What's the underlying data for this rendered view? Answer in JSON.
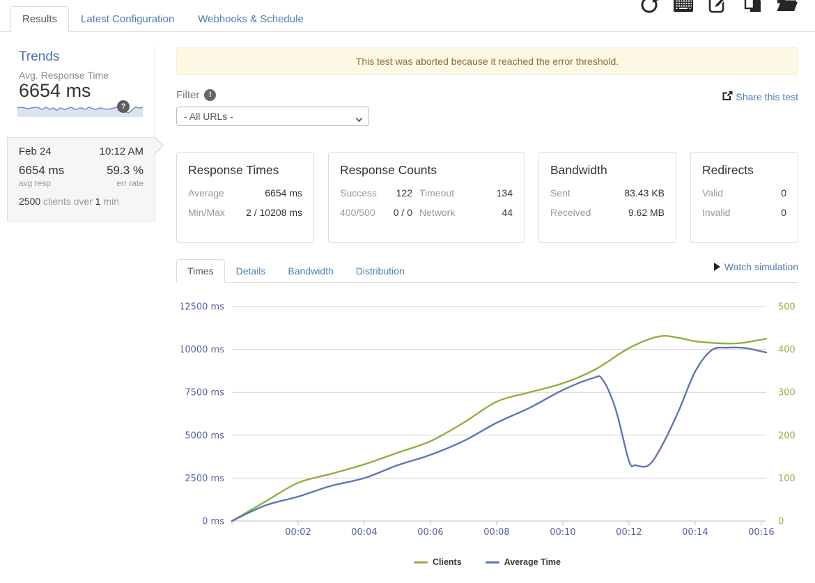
{
  "nav": {
    "tabs": [
      {
        "label": "Results",
        "active": true
      },
      {
        "label": "Latest Configuration",
        "active": false
      },
      {
        "label": "Webhooks & Schedule",
        "active": false
      }
    ],
    "toolbar_icons": [
      "refresh",
      "keyboard",
      "edit",
      "copy",
      "folder"
    ],
    "icon_color": "#262626"
  },
  "sidebar": {
    "title": "Trends",
    "metric_label": "Avg. Response Time",
    "metric_value": "6654 ms",
    "help_badge": "?",
    "sparkline": {
      "line_color": "#6d95c9",
      "fill_color": "#dde4f0",
      "values": [
        9,
        8,
        9,
        10,
        9,
        8,
        9,
        11,
        8,
        11,
        9,
        12,
        9,
        11,
        10,
        8,
        11,
        10,
        9,
        11,
        8,
        10,
        11,
        9,
        10,
        11,
        10,
        9,
        8,
        11,
        14,
        16,
        12,
        8,
        9,
        8
      ]
    },
    "selected_test": {
      "date": "Feb 24",
      "time": "10:12 AM",
      "avg_value": "6654 ms",
      "avg_label": "avg resp",
      "err_value": "59.3 %",
      "err_label": "err rate",
      "clients_count": "2500",
      "clients_text": " clients over ",
      "duration_value": "1",
      "duration_unit": " min"
    }
  },
  "main": {
    "alert": "This test was aborted because it reached the error threshold.",
    "filter": {
      "label": "Filter",
      "badge": "!",
      "selected": "- All URLs -"
    },
    "share_label": "Share this test",
    "cards": [
      {
        "title": "Response Times",
        "rows": [
          {
            "label": "Average",
            "value": "6654 ms"
          },
          {
            "label": "Min/Max",
            "value": "2 / 10208 ms"
          }
        ]
      },
      {
        "title": "Response Counts",
        "rows": [
          {
            "label": "Success",
            "value": "122",
            "label2": "Timeout",
            "value2": "134"
          },
          {
            "label": "400/500",
            "value": "0 / 0",
            "label2": "Network",
            "value2": "44"
          }
        ]
      },
      {
        "title": "Bandwidth",
        "rows": [
          {
            "label": "Sent",
            "value": "83.43 KB"
          },
          {
            "label": "Received",
            "value": "9.62 MB"
          }
        ]
      },
      {
        "title": "Redirects",
        "rows": [
          {
            "label": "Valid",
            "value": "0"
          },
          {
            "label": "Invalid",
            "value": "0"
          }
        ]
      }
    ],
    "chart_tabs": [
      {
        "label": "Times",
        "active": true
      },
      {
        "label": "Details",
        "active": false
      },
      {
        "label": "Bandwidth",
        "active": false
      },
      {
        "label": "Distribution",
        "active": false
      }
    ],
    "watch_label": "Watch simulation"
  },
  "chart_data": {
    "type": "line",
    "x_ticks": [
      "00:02",
      "00:04",
      "00:06",
      "00:08",
      "00:10",
      "00:12",
      "00:14",
      "00:16"
    ],
    "x_range": [
      0,
      16.15
    ],
    "grid": true,
    "left_axis": {
      "labels": [
        "0 ms",
        "2500 ms",
        "5000 ms",
        "7500 ms",
        "10000 ms",
        "12500 ms"
      ],
      "range": [
        0,
        12500
      ],
      "color": "#5560a0"
    },
    "right_axis": {
      "labels": [
        "0",
        "100",
        "200",
        "300",
        "400",
        "500"
      ],
      "range": [
        0,
        500
      ],
      "color": "#9aaa4c"
    },
    "series": [
      {
        "name": "Clients",
        "axis": "right",
        "color": "#8bb33d",
        "points": [
          [
            0,
            0
          ],
          [
            1,
            45
          ],
          [
            2,
            89
          ],
          [
            3,
            110
          ],
          [
            4,
            132
          ],
          [
            5,
            159
          ],
          [
            6,
            186
          ],
          [
            7,
            229
          ],
          [
            8,
            278
          ],
          [
            9,
            300
          ],
          [
            10,
            321
          ],
          [
            11,
            354
          ],
          [
            12,
            403
          ],
          [
            12.9,
            430
          ],
          [
            13.5,
            427
          ],
          [
            14,
            419
          ],
          [
            14.8,
            414
          ],
          [
            15.4,
            415
          ],
          [
            16.15,
            425
          ]
        ]
      },
      {
        "name": "Average Time",
        "axis": "left",
        "color": "#5d76b5",
        "points": [
          [
            0,
            0
          ],
          [
            1,
            900
          ],
          [
            2,
            1420
          ],
          [
            3,
            2050
          ],
          [
            4,
            2500
          ],
          [
            5,
            3245
          ],
          [
            6,
            3855
          ],
          [
            7,
            4660
          ],
          [
            8,
            5722
          ],
          [
            9,
            6600
          ],
          [
            10,
            7630
          ],
          [
            10.9,
            8320
          ],
          [
            11.2,
            8250
          ],
          [
            11.6,
            6500
          ],
          [
            12,
            3500
          ],
          [
            12.2,
            3250
          ],
          [
            12.6,
            3260
          ],
          [
            13,
            4400
          ],
          [
            13.5,
            6400
          ],
          [
            14,
            8700
          ],
          [
            14.5,
            9950
          ],
          [
            15,
            10100
          ],
          [
            15.5,
            10080
          ],
          [
            16.15,
            9820
          ]
        ]
      }
    ],
    "legend": [
      {
        "label": "Clients",
        "color": "#8bb33d"
      },
      {
        "label": "Average Time",
        "color": "#5d76b5"
      }
    ],
    "legend_position": "bottom-center"
  }
}
